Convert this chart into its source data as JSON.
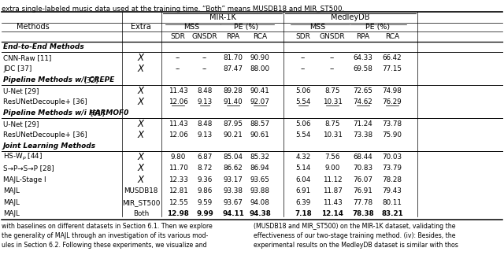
{
  "title_text": "extra single-labeled music data used at the training time. “Both” means MUSDB18 and MIR_ST500.",
  "rows": [
    {
      "label": "End-to-End Methods",
      "type": "section"
    },
    {
      "label": "CNN-Raw [11]",
      "type": "data",
      "extra": "x",
      "vals": [
        "--",
        "--",
        "81.70",
        "90.90",
        "--",
        "--",
        "64.33",
        "66.42"
      ],
      "bold_vals": [],
      "underline": []
    },
    {
      "label": "JDC [37]",
      "type": "data",
      "extra": "x",
      "vals": [
        "--",
        "--",
        "87.47",
        "88.00",
        "--",
        "--",
        "69.58",
        "77.15"
      ],
      "bold_vals": [],
      "underline": []
    },
    {
      "label": "Pipeline Methods w/i CREPE [32]",
      "type": "section"
    },
    {
      "label": "U-Net [29]",
      "type": "data",
      "extra": "x",
      "vals": [
        "11.43",
        "8.48",
        "89.28",
        "90.41",
        "5.06",
        "8.75",
        "72.65",
        "74.98"
      ],
      "bold_vals": [],
      "underline": []
    },
    {
      "label": "ResUNetDecouple+ [36]",
      "type": "data",
      "extra": "x",
      "vals": [
        "12.06",
        "9.13",
        "91.40",
        "92.07",
        "5.54",
        "10.31",
        "74.62",
        "76.29"
      ],
      "bold_vals": [],
      "underline": [
        0,
        1,
        2,
        3,
        4,
        5,
        6,
        7
      ]
    },
    {
      "label": "Pipeline Methods w/i HARMOF0 [61]",
      "type": "section"
    },
    {
      "label": "U-Net [29]",
      "type": "data",
      "extra": "x",
      "vals": [
        "11.43",
        "8.48",
        "87.95",
        "88.57",
        "5.06",
        "8.75",
        "71.24",
        "73.78"
      ],
      "bold_vals": [],
      "underline": []
    },
    {
      "label": "ResUNetDecouple+ [36]",
      "type": "data",
      "extra": "x",
      "vals": [
        "12.06",
        "9.13",
        "90.21",
        "90.61",
        "5.54",
        "10.31",
        "73.38",
        "75.90"
      ],
      "bold_vals": [],
      "underline": []
    },
    {
      "label": "Joint Learning Methods",
      "type": "section"
    },
    {
      "label": "HS-W$_p$ [44]",
      "type": "data",
      "extra": "x",
      "vals": [
        "9.80",
        "6.87",
        "85.04",
        "85.32",
        "4.32",
        "7.56",
        "68.44",
        "70.03"
      ],
      "bold_vals": [],
      "underline": []
    },
    {
      "label": "S→P→S→P [28]",
      "type": "data",
      "extra": "x",
      "vals": [
        "11.70",
        "8.72",
        "86.62",
        "86.94",
        "5.14",
        "9.00",
        "70.83",
        "73.79"
      ],
      "bold_vals": [],
      "underline": []
    },
    {
      "label": "MAJL-Stage I",
      "type": "data",
      "extra": "x",
      "vals": [
        "12.33",
        "9.36",
        "93.17",
        "93.65",
        "6.04",
        "11.12",
        "76.07",
        "78.28"
      ],
      "bold_vals": [],
      "underline": []
    },
    {
      "label": "MAJL",
      "type": "data",
      "extra": "MUSDB18",
      "vals": [
        "12.81",
        "9.86",
        "93.38",
        "93.88",
        "6.91",
        "11.87",
        "76.91",
        "79.43"
      ],
      "bold_vals": [],
      "underline": []
    },
    {
      "label": "MAJL",
      "type": "data",
      "extra": "MIR_ST500",
      "vals": [
        "12.55",
        "9.59",
        "93.67",
        "94.08",
        "6.39",
        "11.43",
        "77.78",
        "80.11"
      ],
      "bold_vals": [],
      "underline": []
    },
    {
      "label": "MAJL",
      "type": "data",
      "extra": "Both",
      "vals": [
        "12.98",
        "9.99",
        "94.11",
        "94.38",
        "7.18",
        "12.14",
        "78.38",
        "83.21"
      ],
      "bold_vals": [
        0,
        1,
        2,
        3,
        4,
        5,
        6,
        7
      ],
      "underline": []
    }
  ],
  "footer_left": "with baselines on different datasets in Section 6.1. Then we explore\nthe generality of MAJL through an investigation of its various mod-\nules in Section 6.2. Following these experiments, we visualize and",
  "footer_right": "(MUSDB18 and MIR_ST500) on the MIR-1K dataset, validating the\neffectiveness of our two-stage training method. (iv): Besides, the\nexperimental results on the MedleyDB dataset is similar with thos"
}
